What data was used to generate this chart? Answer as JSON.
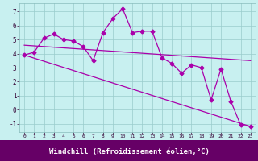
{
  "title": "",
  "xlabel": "Windchill (Refroidissement éolien,°C)",
  "ylabel": "",
  "bg_color": "#c8f0f0",
  "plot_bg_color": "#c8f0f0",
  "xlabel_bg_color": "#660066",
  "xlabel_text_color": "#ffffff",
  "line_color": "#aa00aa",
  "grid_color": "#99cccc",
  "xlim": [
    -0.5,
    23.5
  ],
  "ylim": [
    -1.6,
    7.6
  ],
  "xticks": [
    0,
    1,
    2,
    3,
    4,
    5,
    6,
    7,
    8,
    9,
    10,
    11,
    12,
    13,
    14,
    15,
    16,
    17,
    18,
    19,
    20,
    21,
    22,
    23
  ],
  "yticks": [
    -1,
    0,
    1,
    2,
    3,
    4,
    5,
    6,
    7
  ],
  "actual_x": [
    0,
    1,
    2,
    3,
    4,
    5,
    6,
    7,
    8,
    9,
    10,
    11,
    12,
    13,
    14,
    15,
    16,
    17,
    18,
    19,
    20,
    21,
    22,
    23
  ],
  "actual_y": [
    3.9,
    4.1,
    5.1,
    5.4,
    5.0,
    4.9,
    4.5,
    3.5,
    5.5,
    6.5,
    7.2,
    5.5,
    5.6,
    5.6,
    3.7,
    3.3,
    2.6,
    3.2,
    3.0,
    0.7,
    2.9,
    0.6,
    -1.1,
    -1.2
  ],
  "trend1_x": [
    0,
    23
  ],
  "trend1_y": [
    3.9,
    -1.2
  ],
  "trend2_x": [
    0,
    23
  ],
  "trend2_y": [
    4.6,
    3.5
  ],
  "marker": "D",
  "markersize": 2.5,
  "linewidth": 0.9
}
